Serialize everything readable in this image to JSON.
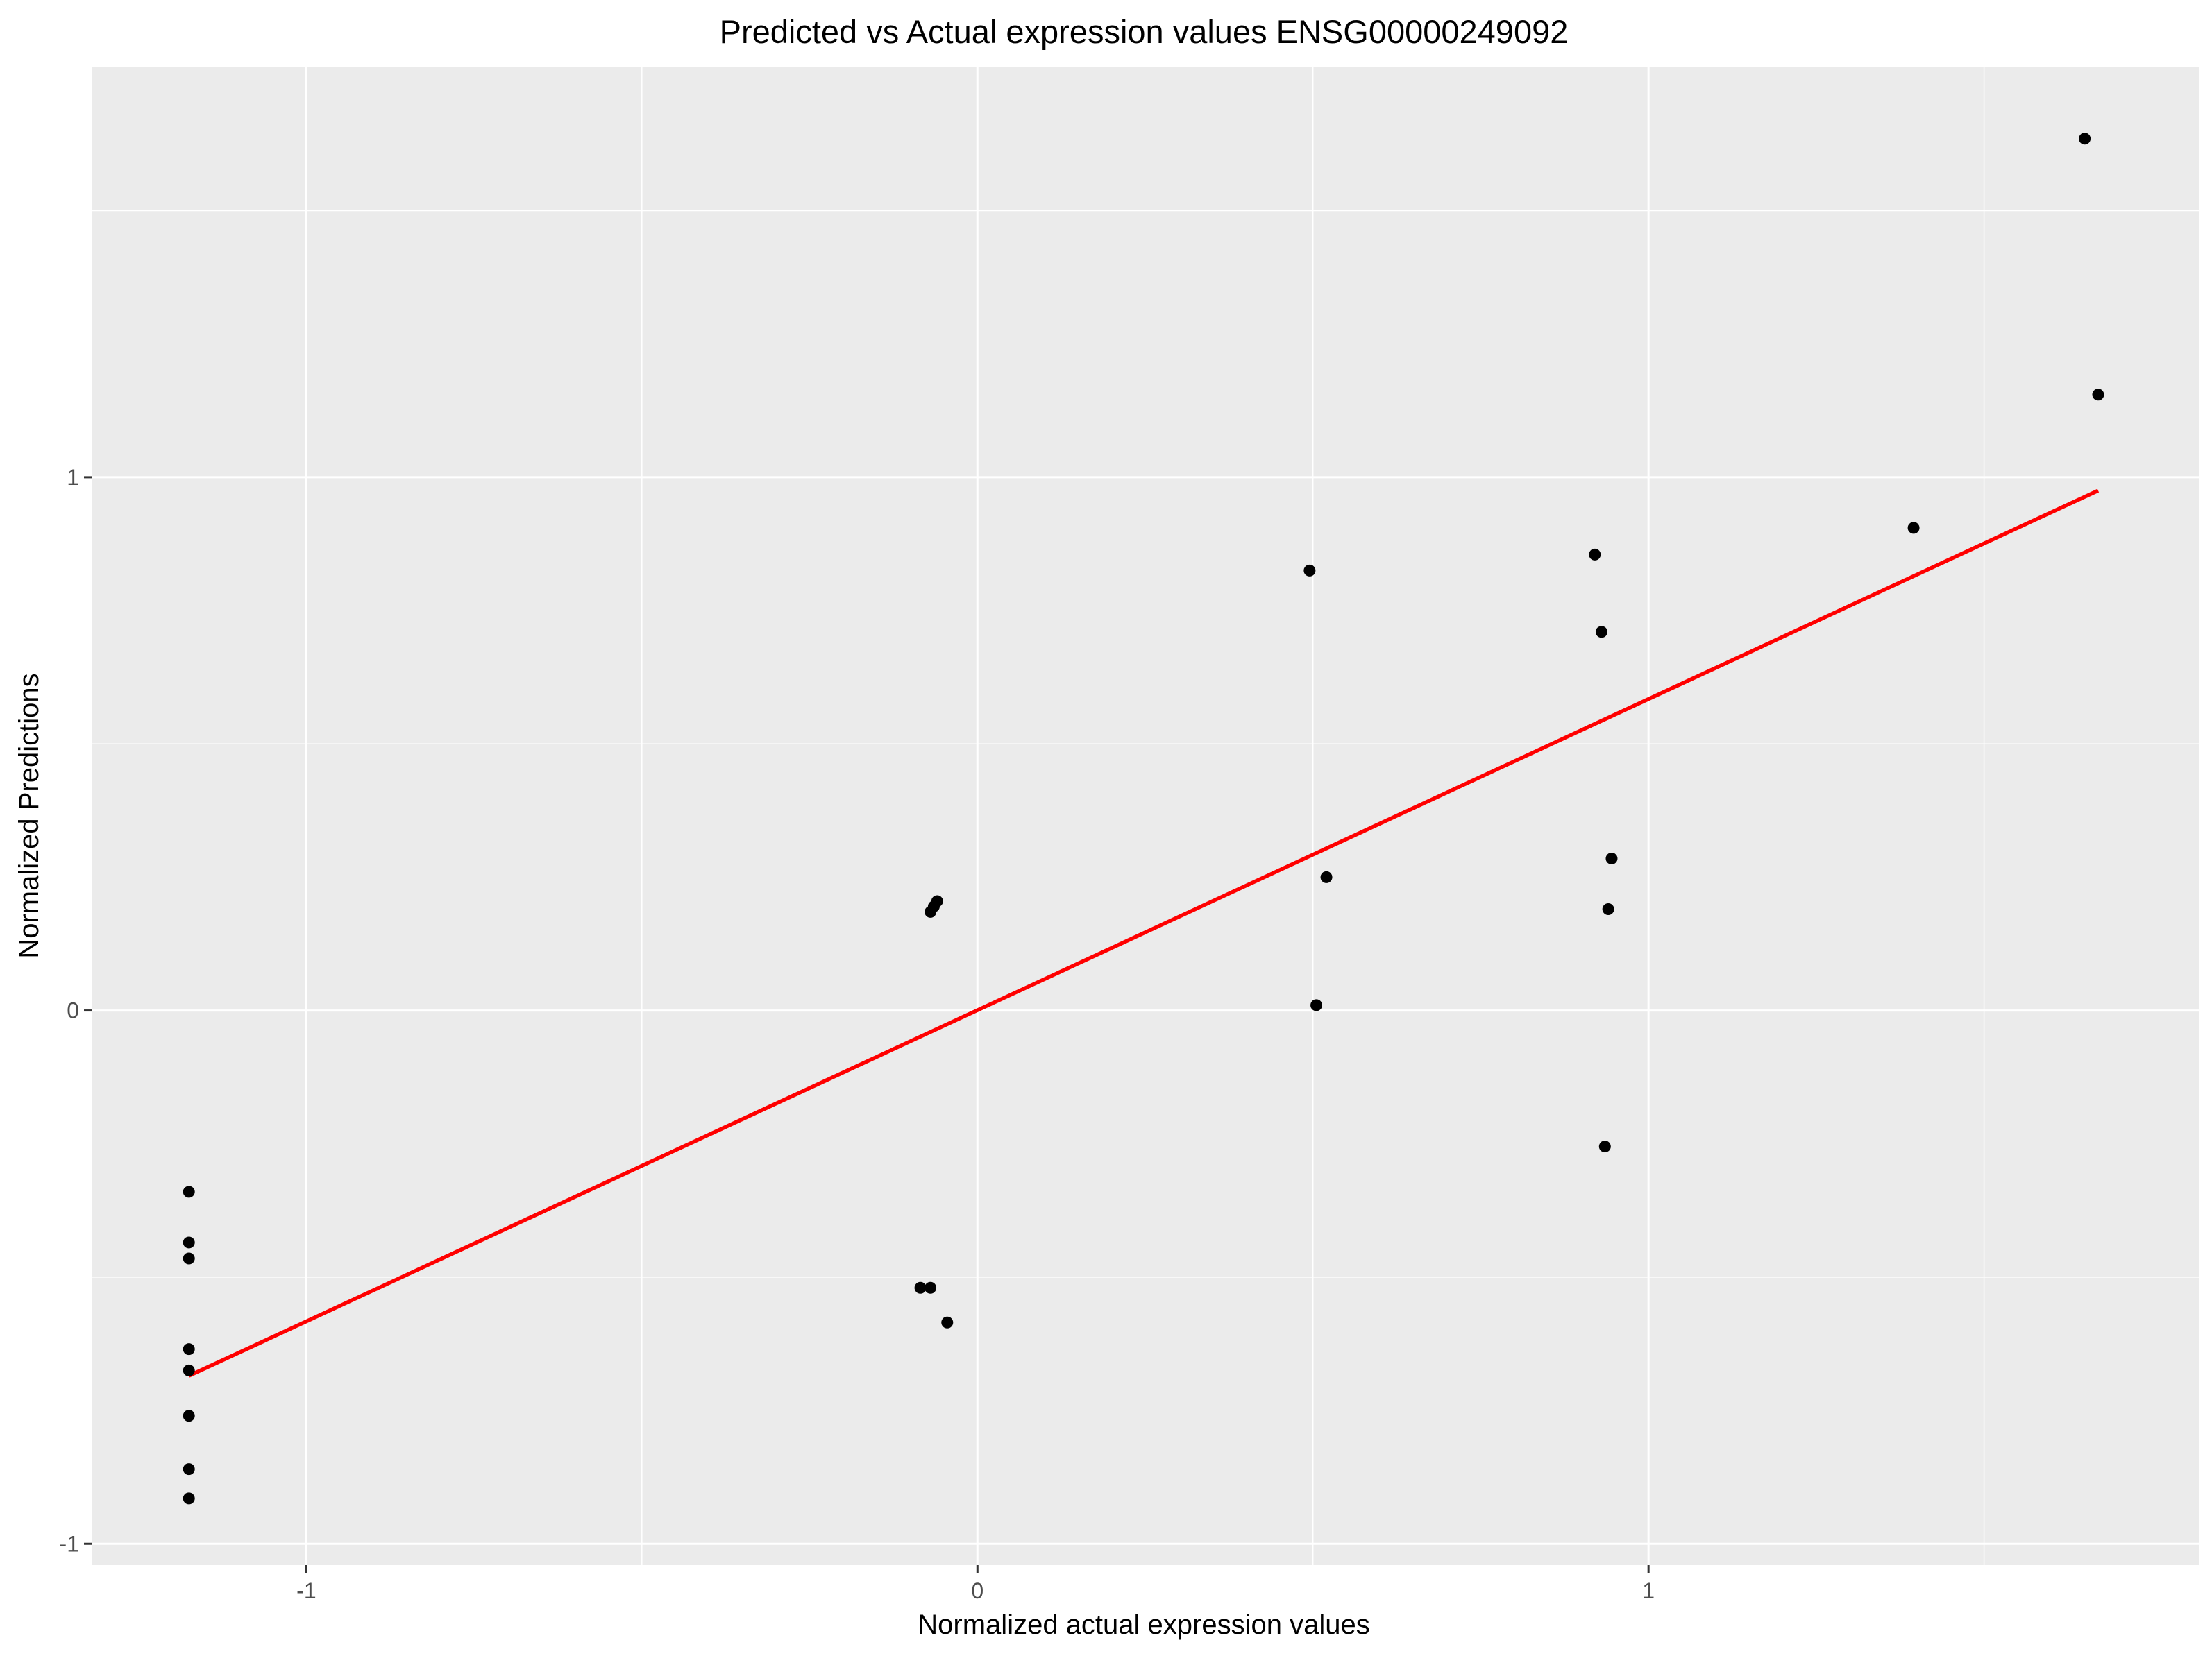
{
  "chart_data": {
    "type": "scatter",
    "title": "Predicted vs Actual expression values ENSG00000249092",
    "xlabel": "Normalized actual expression values",
    "ylabel": "Normalized Predictions",
    "xlim": [
      -1.32,
      1.82
    ],
    "ylim": [
      -1.04,
      1.77
    ],
    "x_ticks": [
      -1,
      0,
      1
    ],
    "y_ticks": [
      -1,
      0,
      1
    ],
    "x_minor_ticks": [
      -0.5,
      0.5,
      1.5
    ],
    "y_minor_ticks": [
      -0.5,
      0.5,
      1.5
    ],
    "grid": true,
    "legend": "none",
    "colors": {
      "panel_background": "#EBEBEB",
      "grid": "#FFFFFF",
      "points": "#000000",
      "fit_line": "#FF0000"
    },
    "points": [
      {
        "x": -1.175,
        "y": -0.34
      },
      {
        "x": -1.175,
        "y": -0.435
      },
      {
        "x": -1.175,
        "y": -0.465
      },
      {
        "x": -1.175,
        "y": -0.635
      },
      {
        "x": -1.175,
        "y": -0.675
      },
      {
        "x": -1.175,
        "y": -0.76
      },
      {
        "x": -1.175,
        "y": -0.86
      },
      {
        "x": -1.175,
        "y": -0.915
      },
      {
        "x": -0.085,
        "y": -0.52
      },
      {
        "x": -0.07,
        "y": -0.52
      },
      {
        "x": -0.045,
        "y": -0.585
      },
      {
        "x": -0.07,
        "y": 0.185
      },
      {
        "x": -0.065,
        "y": 0.195
      },
      {
        "x": -0.06,
        "y": 0.205
      },
      {
        "x": 0.495,
        "y": 0.825
      },
      {
        "x": 0.505,
        "y": 0.01
      },
      {
        "x": 0.52,
        "y": 0.25
      },
      {
        "x": 0.92,
        "y": 0.855
      },
      {
        "x": 0.93,
        "y": 0.71
      },
      {
        "x": 0.94,
        "y": 0.19
      },
      {
        "x": 0.945,
        "y": 0.285
      },
      {
        "x": 0.935,
        "y": -0.255
      },
      {
        "x": 1.395,
        "y": 0.905
      },
      {
        "x": 1.65,
        "y": 1.635
      },
      {
        "x": 1.67,
        "y": 1.155
      }
    ],
    "fit_line": {
      "x": [
        -1.175,
        1.67
      ],
      "y": [
        -0.685,
        0.975
      ]
    }
  }
}
